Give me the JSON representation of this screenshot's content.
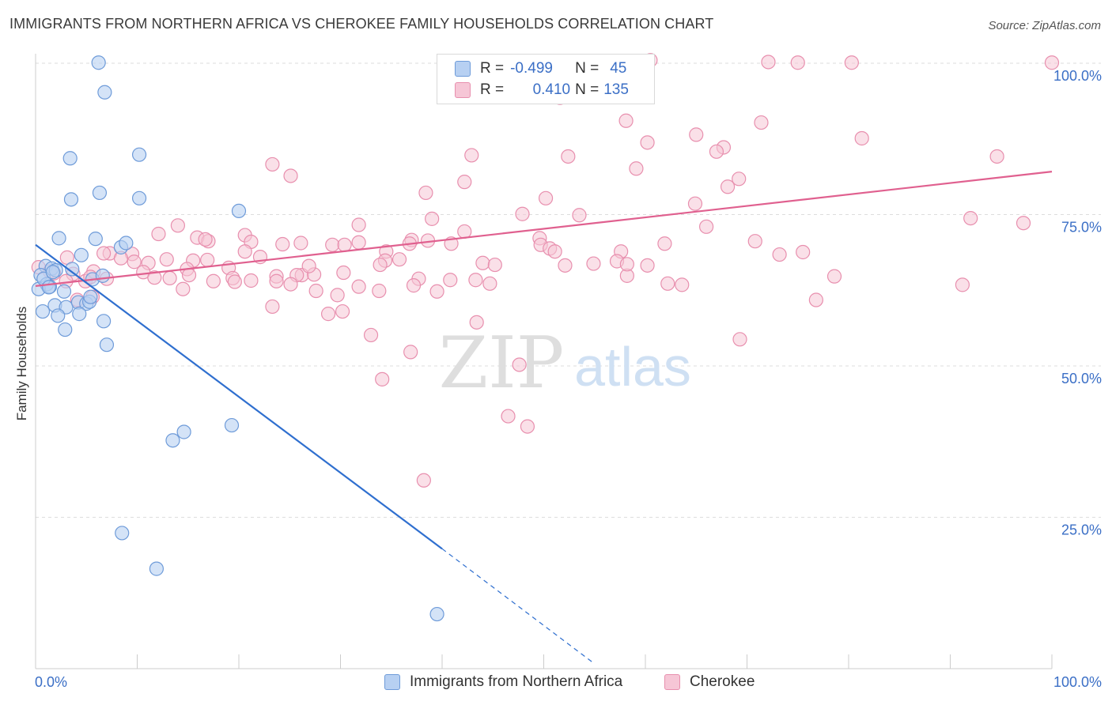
{
  "title": "IMMIGRANTS FROM NORTHERN AFRICA VS CHEROKEE FAMILY HOUSEHOLDS CORRELATION CHART",
  "source": "Source: ZipAtlas.com",
  "watermark": {
    "zip": "ZIP",
    "atlas": "atlas"
  },
  "colors": {
    "blue_fill": "#b7d0f2",
    "blue_stroke": "#6e9bd9",
    "blue_line": "#2f6fcf",
    "pink_fill": "#f6c6d6",
    "pink_stroke": "#e88fae",
    "pink_line": "#e0608f",
    "grid": "#dddddd",
    "tick_text": "#3b6fc6"
  },
  "legend": {
    "r_label": "R =",
    "n_label": "N =",
    "blue_r": "-0.499",
    "blue_n": "45",
    "pink_r": "0.410",
    "pink_n": "135"
  },
  "chart_data": {
    "type": "scatter",
    "xlabel": "",
    "ylabel": "Family Households",
    "xlim": [
      0,
      100
    ],
    "ylim": [
      0,
      100
    ],
    "x_tick_labels": [
      "0.0%",
      "100.0%"
    ],
    "y_tick_labels": [
      {
        "value": 25,
        "label": "25.0%"
      },
      {
        "value": 50,
        "label": "50.0%"
      },
      {
        "value": 75,
        "label": "75.0%"
      },
      {
        "value": 100,
        "label": "100.0%"
      }
    ],
    "grid": true,
    "legend_position": "top-center",
    "series": [
      {
        "name": "Immigrants from Northern Africa",
        "trend": {
          "x1": 0,
          "y1": 70.0,
          "x2": 40,
          "y2": 19.8,
          "dash_to_x": 55,
          "dash_to_y": 0.8
        },
        "points": [
          [
            6.2,
            100.1
          ],
          [
            6.8,
            95.2
          ],
          [
            3.4,
            84.3
          ],
          [
            10.2,
            84.9
          ],
          [
            3.5,
            77.5
          ],
          [
            6.3,
            78.6
          ],
          [
            10.2,
            77.7
          ],
          [
            20.0,
            75.6
          ],
          [
            2.3,
            71.1
          ],
          [
            5.9,
            71.0
          ],
          [
            8.4,
            69.6
          ],
          [
            8.9,
            70.3
          ],
          [
            4.5,
            68.3
          ],
          [
            1.0,
            66.5
          ],
          [
            1.6,
            66.1
          ],
          [
            0.5,
            65.0
          ],
          [
            1.1,
            63.5
          ],
          [
            2.0,
            65.8
          ],
          [
            3.6,
            66.0
          ],
          [
            5.6,
            64.3
          ],
          [
            6.6,
            64.9
          ],
          [
            0.3,
            62.7
          ],
          [
            1.4,
            63.1
          ],
          [
            2.8,
            62.3
          ],
          [
            1.9,
            60.0
          ],
          [
            3.0,
            59.7
          ],
          [
            4.2,
            60.5
          ],
          [
            5.0,
            60.3
          ],
          [
            5.3,
            60.6
          ],
          [
            5.4,
            61.4
          ],
          [
            0.7,
            59.0
          ],
          [
            2.2,
            58.3
          ],
          [
            4.3,
            58.6
          ],
          [
            6.7,
            57.4
          ],
          [
            2.9,
            56.0
          ],
          [
            7.0,
            53.5
          ],
          [
            14.6,
            39.1
          ],
          [
            13.5,
            37.7
          ],
          [
            19.3,
            40.2
          ],
          [
            8.5,
            22.4
          ],
          [
            11.9,
            16.5
          ],
          [
            39.5,
            9.0
          ],
          [
            0.8,
            64.4
          ],
          [
            1.3,
            63.0
          ],
          [
            1.7,
            65.5
          ]
        ]
      },
      {
        "name": "Cherokee",
        "trend": {
          "x1": 0,
          "y1": 63.2,
          "x2": 100,
          "y2": 82.1
        },
        "points": [
          [
            60.5,
            100.5
          ],
          [
            72.1,
            100.2
          ],
          [
            75.0,
            100.1
          ],
          [
            80.3,
            100.1
          ],
          [
            100.0,
            100.1
          ],
          [
            51.6,
            94.3
          ],
          [
            58.1,
            90.5
          ],
          [
            71.4,
            90.2
          ],
          [
            65.0,
            88.2
          ],
          [
            60.2,
            86.9
          ],
          [
            67.7,
            86.1
          ],
          [
            81.3,
            87.6
          ],
          [
            42.9,
            84.8
          ],
          [
            52.4,
            84.6
          ],
          [
            67.0,
            85.4
          ],
          [
            59.1,
            82.6
          ],
          [
            94.6,
            84.6
          ],
          [
            23.3,
            83.3
          ],
          [
            25.1,
            81.4
          ],
          [
            42.2,
            80.4
          ],
          [
            68.1,
            79.6
          ],
          [
            69.2,
            80.9
          ],
          [
            38.4,
            78.6
          ],
          [
            50.2,
            77.7
          ],
          [
            64.9,
            76.8
          ],
          [
            47.9,
            75.1
          ],
          [
            53.5,
            74.9
          ],
          [
            39.0,
            74.3
          ],
          [
            92.0,
            74.4
          ],
          [
            97.2,
            73.6
          ],
          [
            14.0,
            73.2
          ],
          [
            31.8,
            73.3
          ],
          [
            66.0,
            73.0
          ],
          [
            42.2,
            72.2
          ],
          [
            12.1,
            71.8
          ],
          [
            15.9,
            71.2
          ],
          [
            20.6,
            71.6
          ],
          [
            49.6,
            71.1
          ],
          [
            37.0,
            70.8
          ],
          [
            36.8,
            70.2
          ],
          [
            17.0,
            70.6
          ],
          [
            38.6,
            70.7
          ],
          [
            16.7,
            70.9
          ],
          [
            21.2,
            70.5
          ],
          [
            24.3,
            70.1
          ],
          [
            31.8,
            70.4
          ],
          [
            40.9,
            70.2
          ],
          [
            49.7,
            70.0
          ],
          [
            50.6,
            69.4
          ],
          [
            61.9,
            70.2
          ],
          [
            70.8,
            70.6
          ],
          [
            51.1,
            68.9
          ],
          [
            57.6,
            68.9
          ],
          [
            29.2,
            70.0
          ],
          [
            30.4,
            70.0
          ],
          [
            20.6,
            68.9
          ],
          [
            22.1,
            68.0
          ],
          [
            26.1,
            70.3
          ],
          [
            7.3,
            68.6
          ],
          [
            6.7,
            68.6
          ],
          [
            9.5,
            68.5
          ],
          [
            34.5,
            68.9
          ],
          [
            16.9,
            67.5
          ],
          [
            15.5,
            67.4
          ],
          [
            12.9,
            67.6
          ],
          [
            11.1,
            67.0
          ],
          [
            9.7,
            67.2
          ],
          [
            8.4,
            67.8
          ],
          [
            3.1,
            67.9
          ],
          [
            35.8,
            67.6
          ],
          [
            34.4,
            67.4
          ],
          [
            54.9,
            66.9
          ],
          [
            57.2,
            67.3
          ],
          [
            52.1,
            66.6
          ],
          [
            60.2,
            66.6
          ],
          [
            75.5,
            68.8
          ],
          [
            78.6,
            64.8
          ],
          [
            0.3,
            66.3
          ],
          [
            1.4,
            65.6
          ],
          [
            1.8,
            65.3
          ],
          [
            3.7,
            65.2
          ],
          [
            5.7,
            65.6
          ],
          [
            10.6,
            65.5
          ],
          [
            14.9,
            66.0
          ],
          [
            19.0,
            66.2
          ],
          [
            23.7,
            64.8
          ],
          [
            26.2,
            65.0
          ],
          [
            27.4,
            65.1
          ],
          [
            19.4,
            64.5
          ],
          [
            15.1,
            65.0
          ],
          [
            11.7,
            64.6
          ],
          [
            13.2,
            64.5
          ],
          [
            25.7,
            65.0
          ],
          [
            26.9,
            66.5
          ],
          [
            30.3,
            65.4
          ],
          [
            44.0,
            67.0
          ],
          [
            45.2,
            66.7
          ],
          [
            33.9,
            66.7
          ],
          [
            3.0,
            64.0
          ],
          [
            4.9,
            64.0
          ],
          [
            5.4,
            64.7
          ],
          [
            7.0,
            64.4
          ],
          [
            17.5,
            64.0
          ],
          [
            19.6,
            63.9
          ],
          [
            21.2,
            64.1
          ],
          [
            23.7,
            64.0
          ],
          [
            25.1,
            63.5
          ],
          [
            27.6,
            62.4
          ],
          [
            31.8,
            63.1
          ],
          [
            37.7,
            64.4
          ],
          [
            40.8,
            64.2
          ],
          [
            43.3,
            64.2
          ],
          [
            44.7,
            63.6
          ],
          [
            58.2,
            64.9
          ],
          [
            63.6,
            63.4
          ],
          [
            76.8,
            60.9
          ],
          [
            91.2,
            63.4
          ],
          [
            29.7,
            61.7
          ],
          [
            33.8,
            62.4
          ],
          [
            14.5,
            62.7
          ],
          [
            5.6,
            61.4
          ],
          [
            4.1,
            60.9
          ],
          [
            23.3,
            59.8
          ],
          [
            28.8,
            58.6
          ],
          [
            30.2,
            59.0
          ],
          [
            43.4,
            57.2
          ],
          [
            33.0,
            55.1
          ],
          [
            36.9,
            52.3
          ],
          [
            47.6,
            50.2
          ],
          [
            34.1,
            47.8
          ],
          [
            46.5,
            41.7
          ],
          [
            48.4,
            40.0
          ],
          [
            38.2,
            31.1
          ],
          [
            69.3,
            54.4
          ],
          [
            62.2,
            63.6
          ],
          [
            37.2,
            63.3
          ],
          [
            73.2,
            68.4
          ],
          [
            58.2,
            66.8
          ],
          [
            39.5,
            62.3
          ]
        ]
      }
    ]
  },
  "bottom_legend": {
    "blue_label": "Immigrants from Northern Africa",
    "pink_label": "Cherokee"
  }
}
